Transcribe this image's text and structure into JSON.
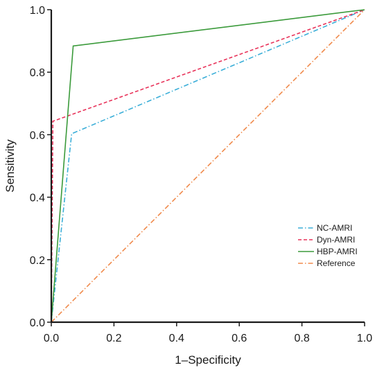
{
  "chart_data": {
    "type": "line",
    "xlabel": "1–Specificity",
    "ylabel": "Sensitivity",
    "xlim": [
      0,
      1
    ],
    "ylim": [
      0,
      1
    ],
    "x_ticks": [
      "0.0",
      "0.2",
      "0.4",
      "0.6",
      "0.8",
      "1.0"
    ],
    "y_ticks": [
      "0.0",
      "0.2",
      "0.4",
      "0.6",
      "0.8",
      "1.0"
    ],
    "grid": false,
    "legend_position": "bottom-right",
    "series": [
      {
        "name": "NC-AMRI",
        "color": "#3aaed8",
        "dash": "dash-dot",
        "points": [
          [
            0,
            0
          ],
          [
            0.065,
            0.603
          ],
          [
            1,
            1
          ]
        ]
      },
      {
        "name": "Dyn-AMRI",
        "color": "#e8335a",
        "dash": "dashed",
        "points": [
          [
            0,
            0
          ],
          [
            0.005,
            0.643
          ],
          [
            1,
            1
          ]
        ]
      },
      {
        "name": "HBP-AMRI",
        "color": "#3a9a3a",
        "dash": "solid",
        "points": [
          [
            0,
            0
          ],
          [
            0.07,
            0.884
          ],
          [
            1,
            1
          ]
        ]
      },
      {
        "name": "Reference",
        "color": "#f08a4b",
        "dash": "dash-dot",
        "points": [
          [
            0,
            0
          ],
          [
            1,
            1
          ]
        ]
      }
    ]
  }
}
